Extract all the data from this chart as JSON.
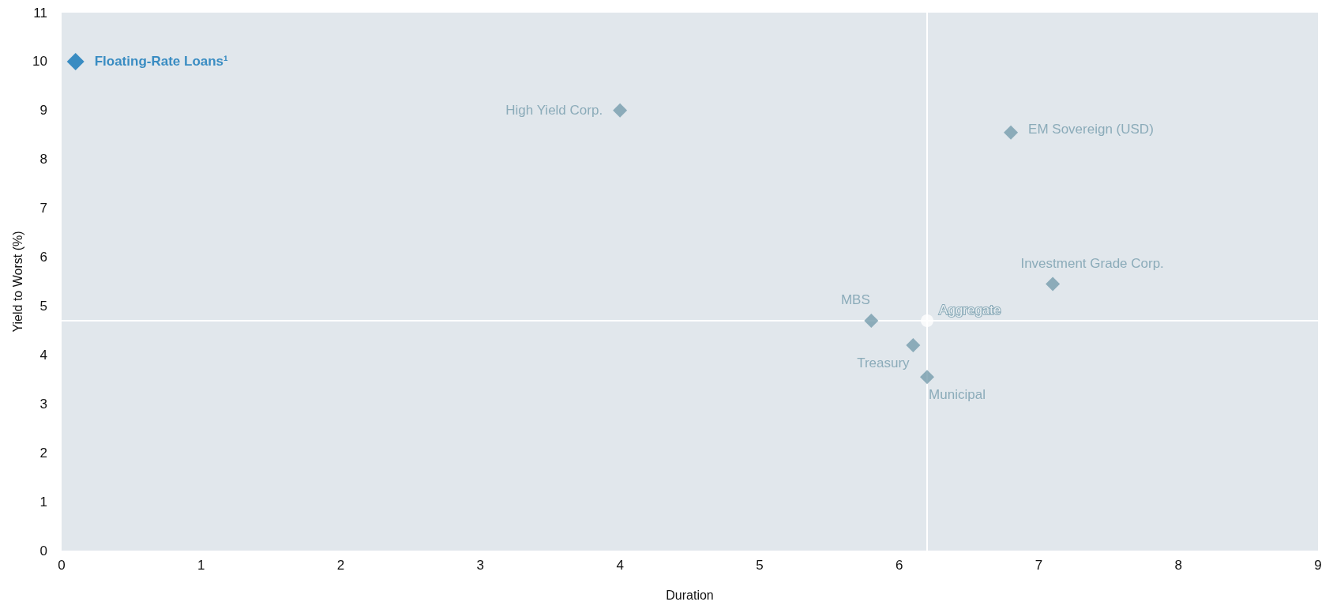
{
  "chart_data": {
    "type": "scatter",
    "xlabel": "Duration",
    "ylabel": "Yield to Worst (%)",
    "xlim": [
      0,
      9
    ],
    "xticks": [
      0,
      1,
      2,
      3,
      4,
      5,
      6,
      7,
      8,
      9
    ],
    "ylim": [
      0,
      11
    ],
    "yticks": [
      0,
      1,
      2,
      3,
      4,
      5,
      6,
      7,
      8,
      9,
      10,
      11
    ],
    "grid": false,
    "legend": false,
    "series": [
      {
        "name": "Floating-Rate Loans¹",
        "color": "#0f75b8",
        "marker": "diamond",
        "x": [
          0.1
        ],
        "values": [
          10.0
        ]
      },
      {
        "name": "High Yield Corp.",
        "color": "#769cad",
        "marker": "diamond",
        "x": [
          4.0
        ],
        "values": [
          9.0
        ]
      },
      {
        "name": "EM Sovereign (USD)",
        "color": "#769cad",
        "marker": "diamond",
        "x": [
          6.8
        ],
        "values": [
          8.55
        ]
      },
      {
        "name": "Investment Grade Corp.",
        "color": "#769cad",
        "marker": "diamond",
        "x": [
          7.1
        ],
        "values": [
          5.45
        ]
      },
      {
        "name": "MBS",
        "color": "#769cad",
        "marker": "diamond",
        "x": [
          5.8
        ],
        "values": [
          4.7
        ]
      },
      {
        "name": "Aggregate",
        "color": "#ffffff",
        "marker": "circle",
        "x": [
          6.2
        ],
        "values": [
          4.7
        ]
      },
      {
        "name": "Treasury",
        "color": "#769cad",
        "marker": "diamond",
        "x": [
          6.1
        ],
        "values": [
          4.2
        ]
      },
      {
        "name": "Municipal",
        "color": "#769cad",
        "marker": "diamond",
        "x": [
          6.2
        ],
        "values": [
          3.55
        ]
      }
    ],
    "ref_lines": [
      {
        "axis": "x",
        "value": 6.2,
        "color": "#ffffff"
      },
      {
        "axis": "y",
        "value": 4.7,
        "color": "#ffffff"
      }
    ]
  }
}
